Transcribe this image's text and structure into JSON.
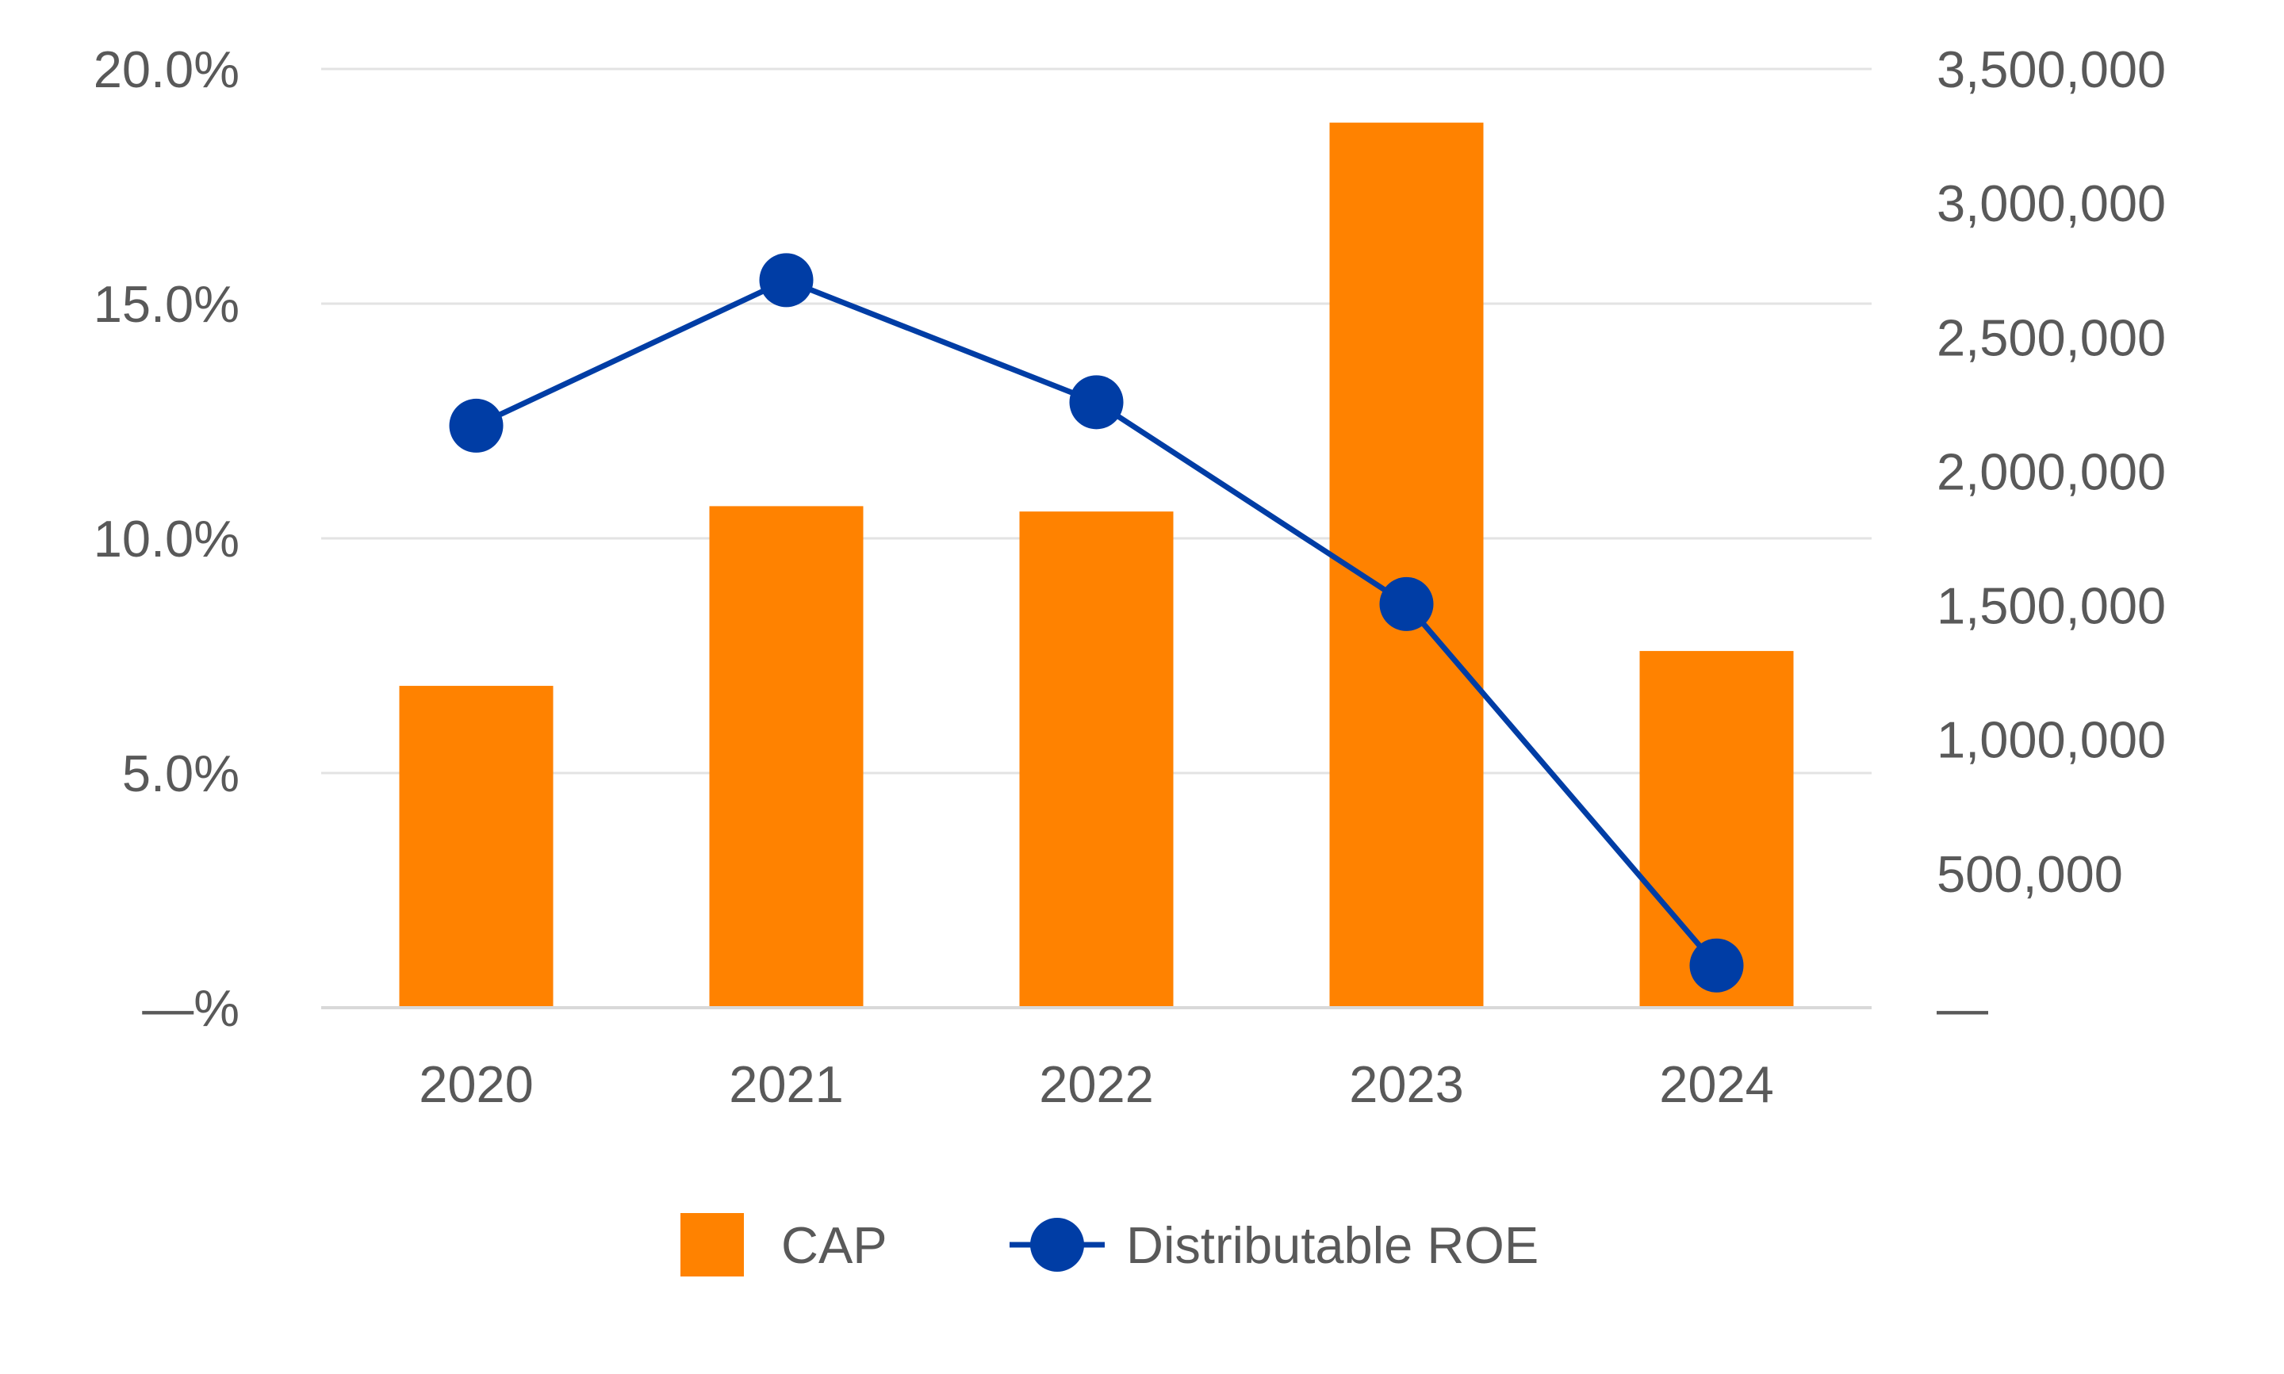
{
  "chart_data": {
    "type": "bar",
    "title": "",
    "xlabel": "",
    "ylabel": "",
    "categories": [
      "2020",
      "2021",
      "2022",
      "2023",
      "2024"
    ],
    "series": [
      {
        "name": "CAP",
        "type": "bar",
        "axis": "right",
        "color": "#FF8200",
        "values": [
          1200000,
          1870000,
          1850000,
          3300000,
          1330000
        ]
      },
      {
        "name": "Distributable ROE",
        "type": "line",
        "axis": "left",
        "color": "#003DA5",
        "values": [
          12.4,
          15.5,
          12.9,
          8.6,
          0.9
        ]
      }
    ],
    "left_axis": {
      "ylim": [
        0,
        20
      ],
      "ticks": [
        0,
        5,
        10,
        15,
        20
      ],
      "tick_labels": [
        "—%",
        "5.0%",
        "10.0%",
        "15.0%",
        "20.0%"
      ]
    },
    "right_axis": {
      "ylim": [
        0,
        3500000
      ],
      "ticks": [
        0,
        500000,
        1000000,
        1500000,
        2000000,
        2500000,
        3000000,
        3500000
      ],
      "tick_labels": [
        "—",
        "500,000",
        "1,000,000",
        "1,500,000",
        "2,000,000",
        "2,500,000",
        "3,000,000",
        "3,500,000"
      ]
    },
    "gridlines": true,
    "legend": {
      "position": "bottom-center",
      "entries": [
        "CAP",
        "Distributable ROE"
      ]
    }
  }
}
